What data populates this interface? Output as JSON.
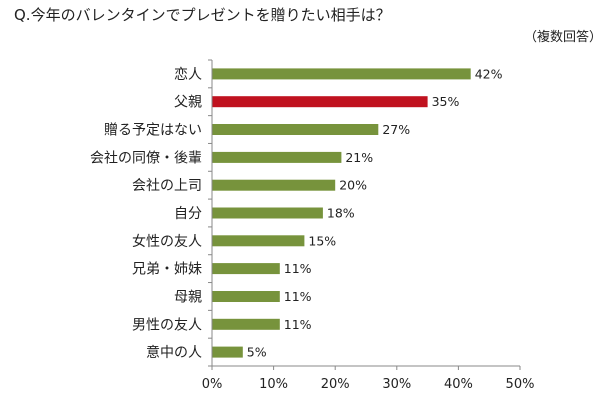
{
  "chart_data": {
    "type": "bar",
    "orientation": "horizontal",
    "title": "Q.今年のバレンタインでプレゼントを贈りたい相手は？",
    "subtitle": "（複数回答）",
    "categories": [
      "恋人",
      "父親",
      "贈る予定はない",
      "会社の同僚・後輩",
      "会社の上司",
      "自分",
      "女性の友人",
      "兄弟・姉妹",
      "母親",
      "男性の友人",
      "意中の人"
    ],
    "values": [
      42,
      35,
      27,
      21,
      20,
      18,
      15,
      11,
      11,
      11,
      5
    ],
    "value_labels": [
      "42%",
      "35%",
      "27%",
      "21%",
      "20%",
      "18%",
      "15%",
      "11%",
      "11%",
      "11%",
      "5%"
    ],
    "highlight_index": 1,
    "xlim": [
      0,
      50
    ],
    "xticks": [
      0,
      10,
      20,
      30,
      40,
      50
    ],
    "xtick_labels": [
      "0%",
      "10%",
      "20%",
      "30%",
      "40%",
      "50%"
    ],
    "xlabel": "",
    "ylabel": "",
    "grid": false,
    "colors": {
      "bar": "#77933c",
      "highlight": "#c0121f",
      "axis": "#888888"
    }
  }
}
